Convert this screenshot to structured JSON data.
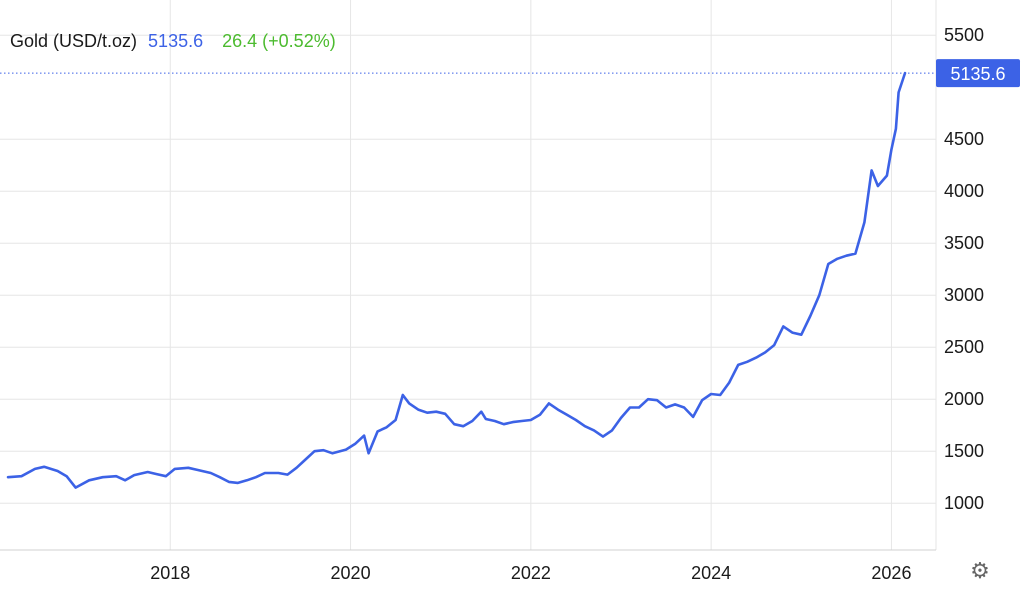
{
  "header": {
    "instrument": "Gold (USD/t.oz)",
    "price": "5135.6",
    "change": "26.4 (+0.52%)"
  },
  "price_marker": {
    "label": "5135.6"
  },
  "colors": {
    "line": "#3c62e6",
    "price_text": "#3c62e6",
    "change_text": "#4cbb2f",
    "marker_bg": "#3c62e6",
    "marker_line": "#3c62e6"
  },
  "settings": {
    "icon": "gear-icon"
  },
  "chart_data": {
    "type": "line",
    "title": "Gold (USD/t.oz)",
    "xlabel": "",
    "ylabel": "",
    "ylim": [
      550,
      5550
    ],
    "xlim": [
      2016.2,
      2026.45
    ],
    "y_ticks": [
      1000,
      1500,
      2000,
      2500,
      3000,
      3500,
      4000,
      4500,
      5500
    ],
    "y_tick_labels": [
      "1000",
      "1500",
      "2000",
      "2500",
      "3000",
      "3500",
      "4000",
      "4500",
      "5500"
    ],
    "x_ticks": [
      2018,
      2020,
      2022,
      2024,
      2026
    ],
    "x_tick_labels": [
      "2018",
      "2020",
      "2022",
      "2024",
      "2026"
    ],
    "grid": true,
    "legend": "none",
    "series": [
      {
        "values": [
          [
            2016.2,
            1250
          ],
          [
            2016.35,
            1260
          ],
          [
            2016.5,
            1330
          ],
          [
            2016.6,
            1350
          ],
          [
            2016.75,
            1310
          ],
          [
            2016.85,
            1260
          ],
          [
            2016.95,
            1150
          ],
          [
            2017.1,
            1220
          ],
          [
            2017.25,
            1250
          ],
          [
            2017.4,
            1260
          ],
          [
            2017.5,
            1220
          ],
          [
            2017.6,
            1270
          ],
          [
            2017.75,
            1300
          ],
          [
            2017.85,
            1280
          ],
          [
            2017.95,
            1260
          ],
          [
            2018.05,
            1330
          ],
          [
            2018.2,
            1340
          ],
          [
            2018.3,
            1320
          ],
          [
            2018.45,
            1290
          ],
          [
            2018.55,
            1250
          ],
          [
            2018.65,
            1205
          ],
          [
            2018.75,
            1195
          ],
          [
            2018.85,
            1220
          ],
          [
            2018.95,
            1250
          ],
          [
            2019.05,
            1290
          ],
          [
            2019.2,
            1290
          ],
          [
            2019.3,
            1275
          ],
          [
            2019.4,
            1340
          ],
          [
            2019.5,
            1420
          ],
          [
            2019.6,
            1500
          ],
          [
            2019.7,
            1510
          ],
          [
            2019.8,
            1480
          ],
          [
            2019.95,
            1515
          ],
          [
            2020.05,
            1570
          ],
          [
            2020.15,
            1650
          ],
          [
            2020.2,
            1480
          ],
          [
            2020.3,
            1690
          ],
          [
            2020.4,
            1730
          ],
          [
            2020.5,
            1800
          ],
          [
            2020.58,
            2040
          ],
          [
            2020.65,
            1960
          ],
          [
            2020.75,
            1900
          ],
          [
            2020.85,
            1870
          ],
          [
            2020.95,
            1880
          ],
          [
            2021.05,
            1860
          ],
          [
            2021.15,
            1760
          ],
          [
            2021.25,
            1740
          ],
          [
            2021.35,
            1790
          ],
          [
            2021.45,
            1880
          ],
          [
            2021.5,
            1810
          ],
          [
            2021.6,
            1790
          ],
          [
            2021.7,
            1760
          ],
          [
            2021.8,
            1780
          ],
          [
            2021.9,
            1790
          ],
          [
            2022.0,
            1800
          ],
          [
            2022.1,
            1850
          ],
          [
            2022.2,
            1960
          ],
          [
            2022.3,
            1900
          ],
          [
            2022.4,
            1850
          ],
          [
            2022.5,
            1800
          ],
          [
            2022.6,
            1740
          ],
          [
            2022.7,
            1700
          ],
          [
            2022.8,
            1640
          ],
          [
            2022.9,
            1700
          ],
          [
            2023.0,
            1820
          ],
          [
            2023.1,
            1920
          ],
          [
            2023.2,
            1920
          ],
          [
            2023.3,
            2000
          ],
          [
            2023.4,
            1990
          ],
          [
            2023.5,
            1920
          ],
          [
            2023.6,
            1950
          ],
          [
            2023.7,
            1920
          ],
          [
            2023.8,
            1830
          ],
          [
            2023.9,
            1990
          ],
          [
            2024.0,
            2050
          ],
          [
            2024.1,
            2040
          ],
          [
            2024.2,
            2160
          ],
          [
            2024.3,
            2330
          ],
          [
            2024.4,
            2360
          ],
          [
            2024.5,
            2400
          ],
          [
            2024.6,
            2450
          ],
          [
            2024.7,
            2520
          ],
          [
            2024.8,
            2700
          ],
          [
            2024.9,
            2640
          ],
          [
            2025.0,
            2620
          ],
          [
            2025.1,
            2800
          ],
          [
            2025.2,
            3000
          ],
          [
            2025.3,
            3300
          ],
          [
            2025.4,
            3350
          ],
          [
            2025.5,
            3380
          ],
          [
            2025.6,
            3400
          ],
          [
            2025.7,
            3700
          ],
          [
            2025.78,
            4200
          ],
          [
            2025.85,
            4050
          ],
          [
            2025.95,
            4150
          ],
          [
            2026.0,
            4400
          ],
          [
            2026.05,
            4600
          ],
          [
            2026.08,
            4950
          ],
          [
            2026.15,
            5135.6
          ]
        ]
      }
    ]
  }
}
